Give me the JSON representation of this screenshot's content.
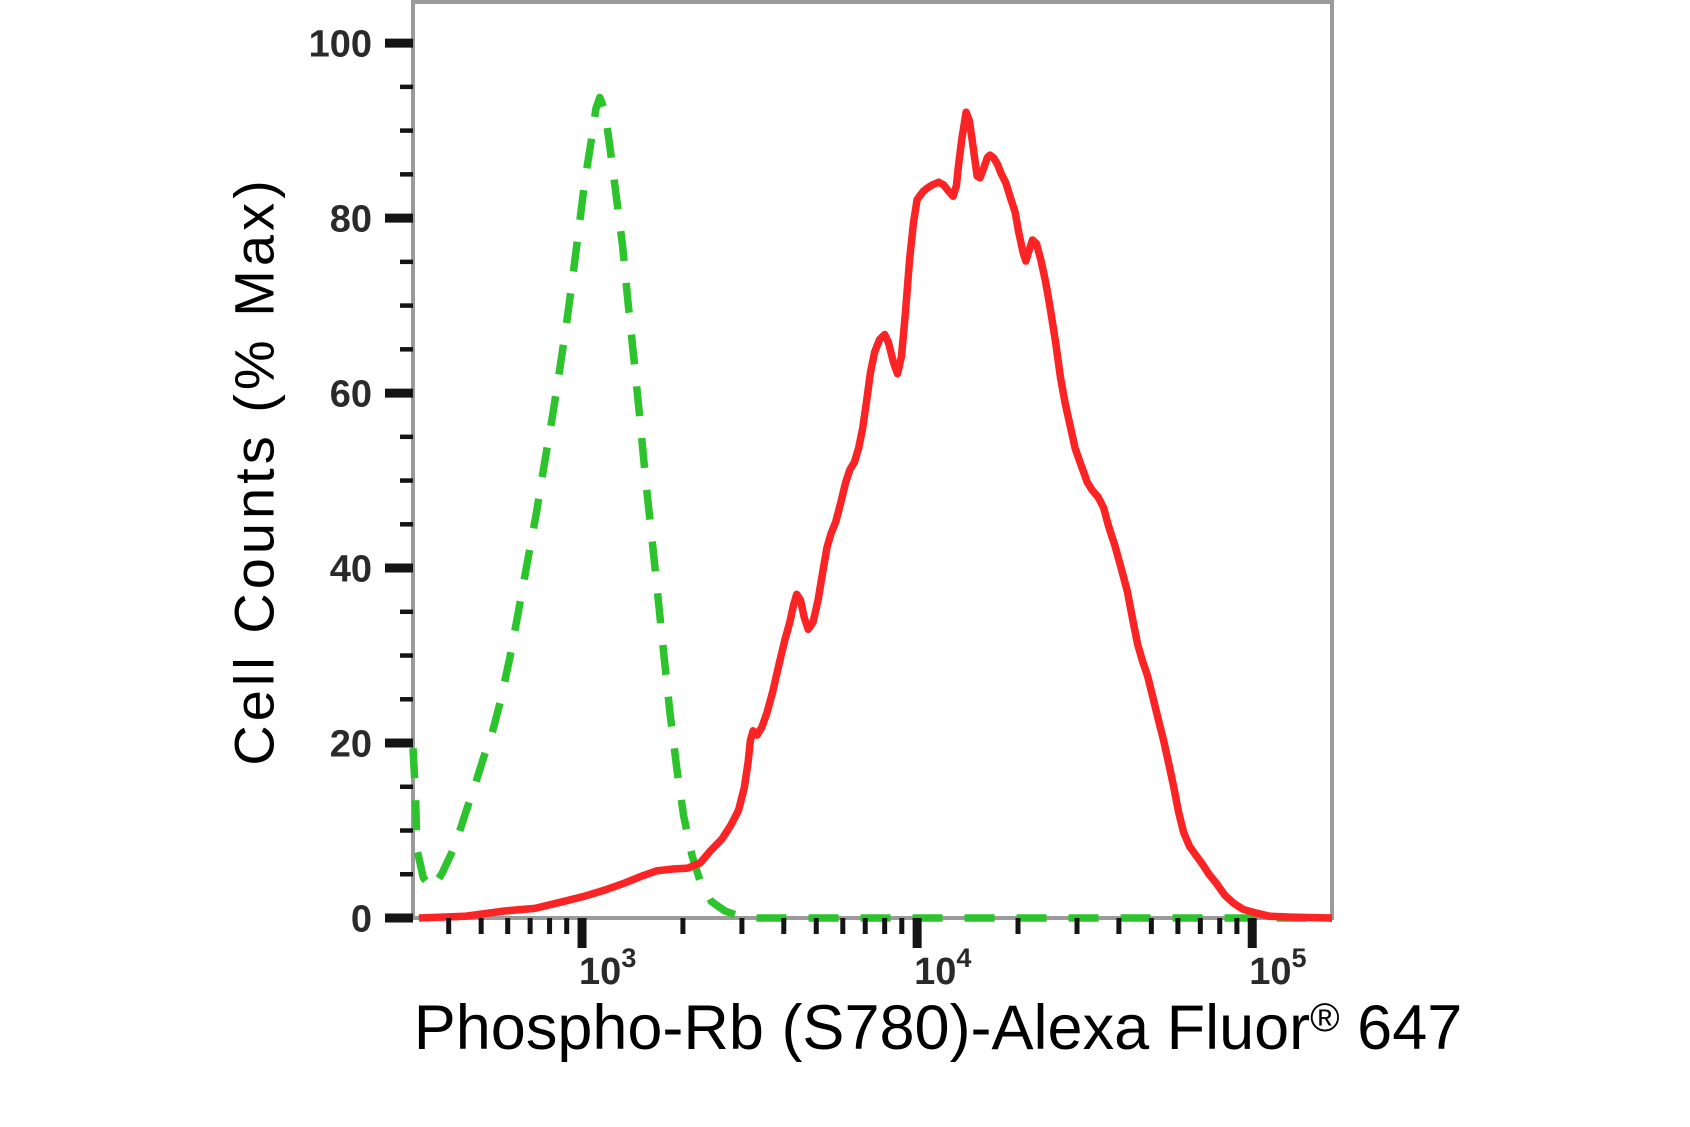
{
  "page": {
    "background": "#ffffff"
  },
  "chart_data": {
    "type": "line",
    "variant": "flow-cytometry-overlay-histogram",
    "title": "",
    "ylabel": "Cell Counts (% Max)",
    "xlabel_full": "Phospho-Rb (S780)-Alexa Fluor® 647",
    "xlabel_parts": {
      "main": "Phospho-Rb (S780)-Alexa Fluor",
      "sup": "®",
      "tail": " 647"
    },
    "axes": {
      "x_scale": "log",
      "x_range": [
        313,
        173000
      ],
      "y_range": [
        0,
        104.7
      ],
      "y_major_ticks": [
        0,
        20,
        40,
        60,
        80,
        100
      ],
      "y_minor_tick_step": 5,
      "x_major_ticks": [
        {
          "value": 1000,
          "base": "10",
          "exp": "3"
        },
        {
          "value": 10000,
          "base": "10",
          "exp": "4"
        },
        {
          "value": 100000,
          "base": "10",
          "exp": "5"
        }
      ],
      "x_minor_ticks": [
        400,
        500,
        600,
        700,
        800,
        900,
        2000,
        3000,
        4000,
        5000,
        6000,
        7000,
        8000,
        9000,
        20000,
        30000,
        40000,
        50000,
        60000,
        70000,
        80000,
        90000
      ],
      "grid": false,
      "legend": "none"
    },
    "colors": {
      "frame": "#9b9b9b",
      "tick": "#141414",
      "tick_label": "#2a2a2a",
      "axis_title": "#000000",
      "green_series": "#2cc32c",
      "red_series": "#fb2424"
    },
    "series": [
      {
        "name": "green-dashed-histogram",
        "style": "dashed",
        "color": "#2cc32c",
        "peak": {
          "x": 1130,
          "y_percent": 93.8
        },
        "points": [
          [
            313,
            19.4
          ],
          [
            318,
            14.6
          ],
          [
            322,
            7.8
          ],
          [
            336,
            4.6
          ],
          [
            357,
            3.4
          ],
          [
            382,
            5.1
          ],
          [
            417,
            8.2
          ],
          [
            450,
            12.1
          ],
          [
            482,
            15.5
          ],
          [
            509,
            18.4
          ],
          [
            537,
            20.9
          ],
          [
            571,
            24.8
          ],
          [
            609,
            29.8
          ],
          [
            647,
            35.2
          ],
          [
            687,
            40.7
          ],
          [
            731,
            46.3
          ],
          [
            771,
            51.8
          ],
          [
            816,
            57.3
          ],
          [
            857,
            62.6
          ],
          [
            900,
            68.1
          ],
          [
            940,
            73.5
          ],
          [
            980,
            79.0
          ],
          [
            1020,
            84.3
          ],
          [
            1070,
            89.3
          ],
          [
            1100,
            92.5
          ],
          [
            1130,
            93.8
          ],
          [
            1170,
            92.3
          ],
          [
            1210,
            88.2
          ],
          [
            1260,
            83.0
          ],
          [
            1320,
            77.0
          ],
          [
            1370,
            70.5
          ],
          [
            1430,
            63.7
          ],
          [
            1490,
            56.8
          ],
          [
            1550,
            49.9
          ],
          [
            1620,
            43.1
          ],
          [
            1690,
            36.2
          ],
          [
            1760,
            29.6
          ],
          [
            1830,
            23.4
          ],
          [
            1920,
            16.9
          ],
          [
            2010,
            11.7
          ],
          [
            2130,
            7.1
          ],
          [
            2260,
            4.0
          ],
          [
            2430,
            1.9
          ],
          [
            2670,
            0.8
          ],
          [
            2960,
            0.2
          ],
          [
            3350,
            0.0
          ],
          [
            173000,
            0.0
          ]
        ]
      },
      {
        "name": "red-solid-histogram",
        "style": "solid",
        "color": "#fb2424",
        "peak": {
          "x": 14000,
          "y_percent": 92.1
        },
        "points": [
          [
            326,
            0
          ],
          [
            446,
            0.2
          ],
          [
            587,
            0.8
          ],
          [
            723,
            1.1
          ],
          [
            860,
            1.8
          ],
          [
            1020,
            2.5
          ],
          [
            1170,
            3.2
          ],
          [
            1340,
            4.0
          ],
          [
            1510,
            4.8
          ],
          [
            1670,
            5.4
          ],
          [
            1870,
            5.6
          ],
          [
            2070,
            5.7
          ],
          [
            2250,
            6.3
          ],
          [
            2420,
            7.7
          ],
          [
            2610,
            9.0
          ],
          [
            2780,
            10.6
          ],
          [
            2930,
            12.3
          ],
          [
            3050,
            14.9
          ],
          [
            3130,
            17.8
          ],
          [
            3180,
            20.3
          ],
          [
            3240,
            21.4
          ],
          [
            3330,
            20.9
          ],
          [
            3440,
            21.8
          ],
          [
            3560,
            23.4
          ],
          [
            3710,
            25.9
          ],
          [
            3870,
            29.0
          ],
          [
            4030,
            31.8
          ],
          [
            4170,
            33.8
          ],
          [
            4280,
            35.8
          ],
          [
            4370,
            37.0
          ],
          [
            4490,
            36.3
          ],
          [
            4600,
            34.4
          ],
          [
            4730,
            33.0
          ],
          [
            4890,
            33.8
          ],
          [
            5060,
            36.3
          ],
          [
            5240,
            39.8
          ],
          [
            5380,
            42.3
          ],
          [
            5530,
            43.9
          ],
          [
            5720,
            45.3
          ],
          [
            5920,
            47.5
          ],
          [
            6120,
            49.8
          ],
          [
            6290,
            51.2
          ],
          [
            6500,
            52.1
          ],
          [
            6690,
            53.7
          ],
          [
            6880,
            56.0
          ],
          [
            7070,
            59.2
          ],
          [
            7260,
            62.4
          ],
          [
            7470,
            64.7
          ],
          [
            7720,
            66.1
          ],
          [
            8000,
            66.7
          ],
          [
            8210,
            65.8
          ],
          [
            8500,
            63.5
          ],
          [
            8740,
            62.2
          ],
          [
            8980,
            64.2
          ],
          [
            9230,
            69.3
          ],
          [
            9500,
            75.4
          ],
          [
            9750,
            79.5
          ],
          [
            10000,
            82.1
          ],
          [
            10400,
            83.0
          ],
          [
            10700,
            83.4
          ],
          [
            11100,
            83.8
          ],
          [
            11600,
            84.1
          ],
          [
            12000,
            83.8
          ],
          [
            12400,
            83.1
          ],
          [
            12800,
            82.5
          ],
          [
            13100,
            83.7
          ],
          [
            13300,
            86.1
          ],
          [
            13600,
            89.1
          ],
          [
            13900,
            91.4
          ],
          [
            14000,
            92.1
          ],
          [
            14300,
            91.2
          ],
          [
            14600,
            88.9
          ],
          [
            14900,
            86.4
          ],
          [
            15100,
            84.8
          ],
          [
            15400,
            84.6
          ],
          [
            15800,
            85.7
          ],
          [
            16200,
            86.9
          ],
          [
            16500,
            87.2
          ],
          [
            16900,
            86.9
          ],
          [
            17400,
            86.1
          ],
          [
            17800,
            85.1
          ],
          [
            18400,
            84.0
          ],
          [
            19000,
            82.3
          ],
          [
            19600,
            80.7
          ],
          [
            20100,
            78.4
          ],
          [
            20700,
            76.1
          ],
          [
            21100,
            75.1
          ],
          [
            21500,
            76.1
          ],
          [
            22100,
            77.5
          ],
          [
            22700,
            77.1
          ],
          [
            23400,
            75.2
          ],
          [
            24200,
            72.6
          ],
          [
            25000,
            69.5
          ],
          [
            25900,
            65.8
          ],
          [
            26800,
            61.7
          ],
          [
            27700,
            58.7
          ],
          [
            28600,
            56.3
          ],
          [
            29600,
            53.7
          ],
          [
            30900,
            51.7
          ],
          [
            32200,
            49.8
          ],
          [
            33300,
            48.9
          ],
          [
            34700,
            48.1
          ],
          [
            36000,
            46.9
          ],
          [
            37200,
            44.9
          ],
          [
            38900,
            42.6
          ],
          [
            40600,
            40.0
          ],
          [
            42400,
            37.3
          ],
          [
            43900,
            34.3
          ],
          [
            45500,
            31.3
          ],
          [
            47100,
            29.3
          ],
          [
            48700,
            27.7
          ],
          [
            50400,
            25.4
          ],
          [
            52500,
            22.6
          ],
          [
            54400,
            20.3
          ],
          [
            56300,
            17.7
          ],
          [
            58300,
            15.0
          ],
          [
            60300,
            12.1
          ],
          [
            62400,
            9.8
          ],
          [
            65000,
            8.2
          ],
          [
            67800,
            7.2
          ],
          [
            70900,
            6.2
          ],
          [
            74300,
            5.0
          ],
          [
            78400,
            3.9
          ],
          [
            82900,
            2.6
          ],
          [
            87900,
            1.7
          ],
          [
            93900,
            1.0
          ],
          [
            102000,
            0.6
          ],
          [
            113000,
            0.2
          ],
          [
            131000,
            0.1
          ],
          [
            173000,
            0.0
          ]
        ]
      }
    ]
  }
}
